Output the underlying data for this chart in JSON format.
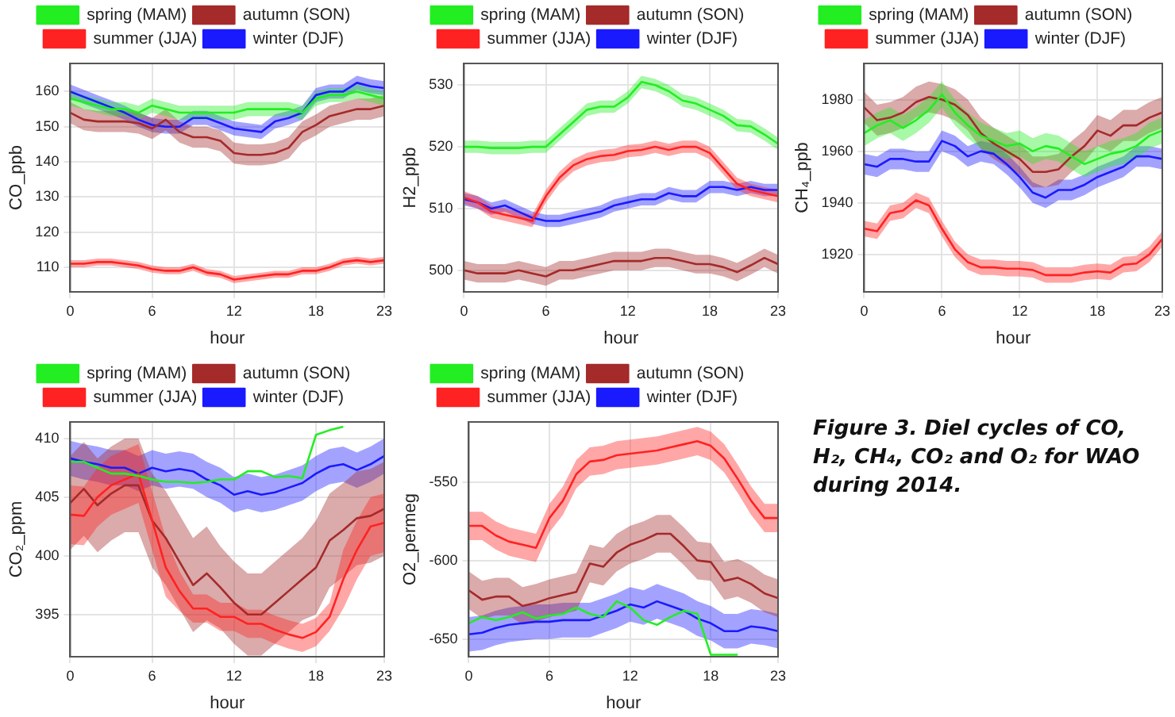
{
  "chart_data": [
    {
      "type": "line",
      "ylabel": "CO_ppb",
      "xlabel": "hour",
      "legend": "top",
      "grid": true,
      "marker": "none",
      "x": [
        0,
        1,
        2,
        3,
        4,
        5,
        6,
        7,
        8,
        9,
        10,
        11,
        12,
        13,
        14,
        15,
        16,
        17,
        18,
        19,
        20,
        21,
        22,
        23
      ],
      "xlim": [
        0,
        23
      ],
      "xticks": [
        0,
        6,
        12,
        18,
        23
      ],
      "ylim": [
        103,
        168
      ],
      "yticks": [
        110,
        120,
        130,
        140,
        150,
        160
      ],
      "series": [
        {
          "name": "spring (MAM)",
          "color": "#22ee22",
          "values": [
            158,
            157,
            156,
            155,
            155,
            154,
            156,
            155,
            154,
            154,
            154,
            154,
            154,
            155,
            155,
            155,
            155,
            154,
            158,
            159,
            159,
            160,
            159,
            158
          ],
          "lower": [
            156,
            155,
            154,
            153,
            153,
            152,
            154,
            153,
            152,
            152,
            152,
            152,
            152,
            153,
            153,
            153,
            153,
            152,
            156,
            157,
            157,
            158,
            157,
            156
          ],
          "upper": [
            160,
            159,
            158,
            157,
            157,
            156,
            158,
            157,
            156,
            156,
            156,
            156,
            156,
            157,
            157,
            157,
            157,
            156,
            160,
            161,
            161,
            162,
            161,
            160
          ]
        },
        {
          "name": "summer (JJA)",
          "color": "#ff2222",
          "values": [
            111,
            111,
            111.5,
            111.5,
            111,
            110.5,
            109.5,
            109,
            109,
            110,
            108.5,
            108,
            106.5,
            107,
            107.5,
            108,
            108,
            109,
            109,
            110,
            111.5,
            112,
            111.5,
            112
          ],
          "lower": [
            110,
            110,
            110.5,
            110.5,
            110,
            109.5,
            108.5,
            108,
            108,
            109,
            107.5,
            107,
            105.5,
            106,
            106.5,
            107,
            107,
            108,
            108,
            109,
            110.5,
            111,
            110.5,
            111
          ],
          "upper": [
            112,
            112,
            112.5,
            112.5,
            112,
            111.5,
            110.5,
            110,
            110,
            111,
            109.5,
            109,
            107.5,
            108,
            108.5,
            109,
            109,
            110,
            110,
            111,
            112.5,
            113,
            112.5,
            113
          ]
        },
        {
          "name": "autumn (SON)",
          "color": "#a52a2a",
          "values": [
            154,
            152,
            151.5,
            151.5,
            151.5,
            151,
            149.5,
            152,
            148.5,
            147,
            147,
            146,
            142.5,
            142,
            142,
            142.5,
            144,
            148.5,
            150.5,
            153,
            154,
            155,
            155,
            156
          ],
          "lower": [
            151,
            149,
            148.5,
            148.5,
            148.5,
            148,
            146.5,
            149,
            145.5,
            144,
            144,
            143,
            139.5,
            139,
            139,
            139.5,
            141,
            145.5,
            147.5,
            150,
            151,
            152,
            152,
            153
          ],
          "upper": [
            157,
            155,
            154.5,
            154.5,
            154.5,
            154,
            152.5,
            155,
            151.5,
            150,
            150,
            149,
            145.5,
            145,
            145,
            145.5,
            147,
            151.5,
            153.5,
            156,
            157,
            158,
            158,
            159
          ]
        },
        {
          "name": "winter (DJF)",
          "color": "#1a1aff",
          "values": [
            160,
            158.5,
            157,
            155.5,
            154,
            152,
            150.5,
            150,
            150,
            152.5,
            152.5,
            151,
            149.5,
            149,
            148.5,
            151.5,
            152.5,
            154,
            159,
            160,
            160,
            162.5,
            161.5,
            161
          ],
          "lower": [
            158,
            156.5,
            155,
            153.5,
            152,
            150,
            148.5,
            148,
            148,
            150.5,
            150.5,
            149,
            147.5,
            147,
            146.5,
            149.5,
            150.5,
            152,
            157,
            158,
            158,
            160.5,
            159.5,
            159
          ],
          "upper": [
            162,
            160.5,
            159,
            157.5,
            156,
            154,
            152.5,
            152,
            152,
            154.5,
            154.5,
            153,
            151.5,
            151,
            150.5,
            153.5,
            154.5,
            156,
            161,
            162,
            162,
            164.5,
            163.5,
            163
          ]
        }
      ]
    },
    {
      "type": "line",
      "ylabel": "H2_ppb",
      "xlabel": "hour",
      "legend": "top",
      "grid": true,
      "marker": "none",
      "x": [
        0,
        1,
        2,
        3,
        4,
        5,
        6,
        7,
        8,
        9,
        10,
        11,
        12,
        13,
        14,
        15,
        16,
        17,
        18,
        19,
        20,
        21,
        22,
        23
      ],
      "xlim": [
        0,
        23
      ],
      "xticks": [
        0,
        6,
        12,
        18,
        23
      ],
      "ylim": [
        496.5,
        533.5
      ],
      "yticks": [
        500,
        510,
        520,
        530
      ],
      "series": [
        {
          "name": "spring (MAM)",
          "color": "#22ee22",
          "values": [
            520,
            520,
            519.8,
            519.8,
            519.8,
            520,
            520,
            522,
            524,
            526,
            526.5,
            526.5,
            528,
            530.5,
            530,
            529,
            527.5,
            527,
            526,
            525,
            523.5,
            523.3,
            522,
            520.5
          ],
          "lower": [
            519,
            519,
            518.8,
            518.8,
            518.8,
            519,
            519,
            521,
            523,
            525,
            525.5,
            525.5,
            527,
            529.5,
            529,
            528,
            526.5,
            526,
            525,
            524,
            522.5,
            522.3,
            521,
            519.5
          ],
          "upper": [
            521,
            521,
            520.8,
            520.8,
            520.8,
            521,
            521,
            523,
            525,
            527,
            527.5,
            527.5,
            529,
            531.5,
            531,
            530,
            528.5,
            528,
            527,
            526,
            524.5,
            524.3,
            523,
            521.5
          ]
        },
        {
          "name": "summer (JJA)",
          "color": "#ff2222",
          "values": [
            511.8,
            511,
            509.5,
            509,
            508.5,
            508,
            512,
            515,
            517,
            518,
            518.5,
            518.7,
            519.3,
            519.5,
            520,
            519.5,
            520,
            520,
            519,
            516.5,
            514,
            513,
            512.5,
            512
          ],
          "lower": [
            510.8,
            510,
            508.5,
            508,
            507.5,
            507,
            511,
            514,
            516,
            517,
            517.5,
            517.7,
            518.3,
            518.5,
            519,
            518.5,
            519,
            519,
            518,
            515.5,
            513,
            512,
            511.5,
            511
          ],
          "upper": [
            512.8,
            512,
            510.5,
            510,
            509.5,
            509,
            513,
            516,
            518,
            519,
            519.5,
            519.7,
            520.3,
            520.5,
            521,
            520.5,
            521,
            521,
            520,
            517.5,
            515,
            514,
            513.5,
            513
          ]
        },
        {
          "name": "autumn (SON)",
          "color": "#a52a2a",
          "values": [
            500,
            499.5,
            499.5,
            499.5,
            500,
            499.5,
            499,
            500,
            500,
            500.5,
            501,
            501.5,
            501.5,
            501.5,
            502,
            502,
            501.5,
            501,
            501,
            500.5,
            499.7,
            500.8,
            502,
            501
          ],
          "lower": [
            498.5,
            498,
            498,
            498,
            498.5,
            498,
            497.5,
            498.5,
            498.5,
            499,
            499.5,
            500,
            500,
            500,
            500.5,
            500.5,
            500,
            499.5,
            499.5,
            499,
            498.2,
            499.3,
            500.5,
            499.5
          ],
          "upper": [
            501.5,
            501,
            501,
            501,
            501.5,
            501,
            500.5,
            501.5,
            501.5,
            502,
            502.5,
            503,
            503,
            503,
            503.5,
            503.5,
            503,
            502.5,
            502.5,
            502,
            501.2,
            502.3,
            503.5,
            502.5
          ]
        },
        {
          "name": "winter (DJF)",
          "color": "#1a1aff",
          "values": [
            511.5,
            511,
            510,
            510.5,
            509.5,
            508.5,
            508,
            508,
            508.5,
            509,
            509.5,
            510.5,
            511,
            511.5,
            511.5,
            512.5,
            512,
            512,
            513.5,
            513.5,
            513,
            513.5,
            513,
            513
          ],
          "lower": [
            510.5,
            510,
            509,
            509.5,
            508.5,
            507.5,
            507,
            507,
            507.5,
            508,
            508.5,
            509.5,
            510,
            510.5,
            510.5,
            511.5,
            511,
            511,
            512.5,
            512.5,
            512,
            512.5,
            512,
            512
          ],
          "upper": [
            512.5,
            512,
            511,
            511.5,
            510.5,
            509.5,
            509,
            509,
            509.5,
            510,
            510.5,
            511.5,
            512,
            512.5,
            512.5,
            513.5,
            513,
            513,
            514.5,
            514.5,
            514,
            514.5,
            514,
            514
          ]
        }
      ]
    },
    {
      "type": "line",
      "ylabel": "CH₄_ppb",
      "xlabel": "hour",
      "legend": "top",
      "grid": true,
      "marker": "none",
      "x": [
        0,
        1,
        2,
        3,
        4,
        5,
        6,
        7,
        8,
        9,
        10,
        11,
        12,
        13,
        14,
        15,
        16,
        17,
        18,
        19,
        20,
        21,
        22,
        23
      ],
      "xlim": [
        0,
        23
      ],
      "xticks": [
        0,
        6,
        12,
        18,
        23
      ],
      "ylim": [
        1905.5,
        1994
      ],
      "yticks": [
        1920,
        1940,
        1960,
        1980
      ],
      "series": [
        {
          "name": "spring (MAM)",
          "color": "#22ee22",
          "values": [
            1967,
            1970,
            1972,
            1969,
            1972,
            1976,
            1982,
            1975,
            1970,
            1966,
            1964,
            1962,
            1963,
            1960,
            1962,
            1961,
            1958,
            1955,
            1957,
            1959,
            1960,
            1962,
            1966,
            1968
          ],
          "lower": [
            1962,
            1965,
            1967,
            1964,
            1967,
            1971,
            1977,
            1970,
            1965,
            1961,
            1959,
            1957,
            1958,
            1955,
            1957,
            1956,
            1953,
            1950,
            1952,
            1954,
            1955,
            1957,
            1961,
            1963
          ],
          "upper": [
            1972,
            1975,
            1977,
            1974,
            1977,
            1981,
            1987,
            1980,
            1975,
            1971,
            1969,
            1967,
            1968,
            1965,
            1967,
            1966,
            1963,
            1960,
            1962,
            1964,
            1965,
            1967,
            1971,
            1973
          ]
        },
        {
          "name": "summer (JJA)",
          "color": "#ff2222",
          "values": [
            1930,
            1929,
            1936,
            1937,
            1941,
            1939,
            1930,
            1922,
            1917,
            1915,
            1915,
            1914.5,
            1914.5,
            1914,
            1912,
            1912,
            1912,
            1913,
            1913.5,
            1913,
            1916,
            1916.5,
            1920,
            1926
          ],
          "lower": [
            1927,
            1926,
            1933,
            1934,
            1938,
            1936,
            1927,
            1919,
            1914,
            1912,
            1912,
            1911.5,
            1911.5,
            1911,
            1909,
            1909,
            1909,
            1910,
            1910.5,
            1910,
            1913,
            1913.5,
            1917,
            1923
          ],
          "upper": [
            1933,
            1932,
            1939,
            1940,
            1944,
            1942,
            1933,
            1925,
            1920,
            1918,
            1918,
            1917.5,
            1917.5,
            1917,
            1915,
            1915,
            1915,
            1916,
            1916.5,
            1916,
            1919,
            1919.5,
            1923,
            1929
          ]
        },
        {
          "name": "autumn (SON)",
          "color": "#a52a2a",
          "values": [
            1977,
            1972,
            1973,
            1975,
            1979,
            1981,
            1980,
            1978,
            1974,
            1967,
            1963,
            1960,
            1957,
            1952,
            1952,
            1953,
            1958,
            1962,
            1968,
            1966,
            1970,
            1970,
            1973,
            1975
          ],
          "lower": [
            1971,
            1966,
            1967,
            1969,
            1973,
            1975,
            1974,
            1972,
            1968,
            1961,
            1957,
            1954,
            1951,
            1946,
            1946,
            1947,
            1952,
            1956,
            1962,
            1960,
            1964,
            1964,
            1967,
            1969
          ],
          "upper": [
            1983,
            1978,
            1979,
            1981,
            1985,
            1987,
            1986,
            1984,
            1980,
            1973,
            1969,
            1966,
            1963,
            1958,
            1958,
            1959,
            1964,
            1968,
            1974,
            1972,
            1976,
            1976,
            1979,
            1981
          ]
        },
        {
          "name": "winter (DJF)",
          "color": "#1a1aff",
          "values": [
            1955,
            1954,
            1957,
            1957,
            1956,
            1956,
            1964,
            1962,
            1958,
            1960,
            1959,
            1955,
            1950,
            1944,
            1942,
            1945,
            1945,
            1947,
            1950,
            1952,
            1954,
            1958,
            1958,
            1957
          ],
          "lower": [
            1951,
            1950,
            1953,
            1953,
            1952,
            1952,
            1960,
            1958,
            1954,
            1956,
            1955,
            1951,
            1946,
            1940,
            1938,
            1941,
            1941,
            1943,
            1946,
            1948,
            1950,
            1954,
            1954,
            1953
          ],
          "upper": [
            1959,
            1958,
            1961,
            1961,
            1960,
            1960,
            1968,
            1966,
            1962,
            1964,
            1963,
            1959,
            1954,
            1948,
            1946,
            1949,
            1949,
            1951,
            1954,
            1956,
            1958,
            1962,
            1962,
            1961
          ]
        }
      ]
    },
    {
      "type": "line",
      "ylabel": "CO₂_ppm",
      "xlabel": "hour",
      "legend": "top",
      "grid": true,
      "marker": "none",
      "x": [
        0,
        1,
        2,
        3,
        4,
        5,
        6,
        7,
        8,
        9,
        10,
        11,
        12,
        13,
        14,
        15,
        16,
        17,
        18,
        19,
        20,
        21,
        22,
        23
      ],
      "xlim": [
        0,
        23
      ],
      "xticks": [
        0,
        6,
        12,
        18,
        23
      ],
      "ylim": [
        391.4,
        411.4
      ],
      "yticks": [
        395,
        400,
        405,
        410
      ],
      "series": [
        {
          "name": "spring (MAM)",
          "color": "#22ee22",
          "values": [
            408,
            408,
            407.5,
            407,
            407,
            406.8,
            406.5,
            406.3,
            406.3,
            406.2,
            406.3,
            406.5,
            406.5,
            407.2,
            407.2,
            406.7,
            406.8,
            406.6,
            410.3,
            410.7,
            411,
            null,
            null,
            null
          ]
        },
        {
          "name": "summer (JJA)",
          "color": "#ff2222",
          "values": [
            403.5,
            403.4,
            405,
            406,
            406.5,
            407,
            403,
            399,
            397,
            395.5,
            395.5,
            394.8,
            394.8,
            394.2,
            394.2,
            393.7,
            393.3,
            393,
            393.5,
            394.8,
            398,
            400.5,
            402.5,
            402.8
          ],
          "lower": [
            401,
            400.9,
            402.5,
            403.5,
            404,
            404.5,
            400.5,
            396.5,
            395.3,
            394.3,
            394.3,
            393.6,
            393.6,
            393,
            393,
            392.5,
            392.1,
            391.8,
            392.3,
            393.6,
            395.5,
            398,
            400,
            400.3
          ],
          "upper": [
            406,
            405.9,
            407.5,
            408.5,
            409,
            409.5,
            405.5,
            401.5,
            398.7,
            396.7,
            396.7,
            396,
            396,
            395.4,
            395.4,
            394.9,
            394.5,
            394.2,
            394.7,
            396,
            400.5,
            403,
            405,
            405.3
          ]
        },
        {
          "name": "autumn (SON)",
          "color": "#a52a2a",
          "values": [
            404.5,
            405.7,
            404.3,
            405.3,
            406,
            406,
            403,
            401.5,
            399.5,
            397.5,
            398.5,
            397.3,
            396,
            395,
            395,
            396,
            397,
            398,
            399,
            401.3,
            402.2,
            403.2,
            403.4,
            404
          ],
          "lower": [
            400.5,
            401.7,
            400.3,
            401.3,
            402,
            402,
            399,
            397.5,
            395.5,
            393.5,
            394.5,
            393.8,
            392.5,
            391.5,
            391.5,
            392.5,
            393.5,
            394.5,
            395,
            397.3,
            398.2,
            399.2,
            399.4,
            400
          ],
          "upper": [
            408.5,
            409.7,
            408.3,
            409.3,
            410,
            410,
            407,
            405.5,
            403.5,
            401.5,
            402.5,
            400.8,
            399.5,
            398.5,
            398.5,
            399.5,
            400.5,
            401.5,
            403,
            405.3,
            406.2,
            407.2,
            407.4,
            408
          ]
        },
        {
          "name": "winter (DJF)",
          "color": "#1a1aff",
          "values": [
            408.3,
            408,
            407.8,
            407.5,
            407.5,
            407,
            407.5,
            407.2,
            407.4,
            407.2,
            406.5,
            406,
            405.2,
            405.5,
            405.2,
            405.4,
            405.8,
            406.2,
            407,
            407.6,
            407.8,
            407.3,
            407.8,
            408.5
          ],
          "lower": [
            406.8,
            406.5,
            406.3,
            406,
            406,
            405.5,
            406,
            405.7,
            405.9,
            405.7,
            405,
            404.5,
            403.7,
            404,
            403.7,
            403.9,
            404.3,
            404.7,
            405.5,
            406.1,
            406.3,
            405.8,
            406.3,
            407
          ],
          "upper": [
            409.8,
            409.5,
            409.3,
            409,
            409,
            408.5,
            409,
            408.7,
            408.9,
            408.7,
            408,
            407.5,
            406.7,
            407,
            406.7,
            406.9,
            407.3,
            407.7,
            408.5,
            409.1,
            409.3,
            408.8,
            409.3,
            410
          ]
        }
      ]
    },
    {
      "type": "line",
      "ylabel": "O2_permeg",
      "xlabel": "hour",
      "legend": "top",
      "grid": true,
      "marker": "none",
      "x": [
        0,
        1,
        2,
        3,
        4,
        5,
        6,
        7,
        8,
        9,
        10,
        11,
        12,
        13,
        14,
        15,
        16,
        17,
        18,
        19,
        20,
        21,
        22,
        23
      ],
      "xlim": [
        0,
        23
      ],
      "xticks": [
        0,
        6,
        12,
        18,
        23
      ],
      "ylim": [
        -661.3,
        -511.8
      ],
      "yticks": [
        -650,
        -600,
        -550
      ],
      "series": [
        {
          "name": "spring (MAM)",
          "color": "#22ee22",
          "values": [
            -640,
            -636,
            -638,
            -636,
            -633,
            -637,
            -635,
            -634,
            -630,
            -634,
            -636,
            -626,
            -630,
            -638,
            -641,
            -636,
            -632,
            -634,
            -660,
            -660,
            -660,
            null,
            null,
            null
          ]
        },
        {
          "name": "summer (JJA)",
          "color": "#ff2222",
          "values": [
            -578,
            -578,
            -584,
            -588,
            -590,
            -592,
            -573,
            -562,
            -545,
            -537,
            -536,
            -533,
            -532,
            -531,
            -530,
            -528,
            -526,
            -524,
            -527,
            -535,
            -548,
            -562,
            -573,
            -573
          ],
          "lower": [
            -587,
            -587,
            -593,
            -597,
            -599,
            -601,
            -582,
            -571,
            -554,
            -546,
            -545,
            -542,
            -541,
            -540,
            -539,
            -537,
            -535,
            -533,
            -536,
            -544,
            -557,
            -571,
            -582,
            -582
          ],
          "upper": [
            -569,
            -569,
            -575,
            -579,
            -581,
            -583,
            -564,
            -553,
            -536,
            -528,
            -527,
            -524,
            -523,
            -522,
            -521,
            -519,
            -517,
            -515,
            -518,
            -526,
            -539,
            -553,
            -564,
            -564
          ]
        },
        {
          "name": "autumn (SON)",
          "color": "#a52a2a",
          "values": [
            -619,
            -625,
            -623,
            -623,
            -629,
            -627,
            -624,
            -622,
            -620,
            -602,
            -604,
            -595,
            -590,
            -587,
            -583,
            -583,
            -591,
            -600,
            -601,
            -613,
            -611,
            -615,
            -621,
            -624
          ],
          "lower": [
            -631,
            -637,
            -635,
            -635,
            -641,
            -639,
            -636,
            -634,
            -632,
            -614,
            -616,
            -607,
            -602,
            -599,
            -595,
            -595,
            -603,
            -612,
            -613,
            -625,
            -623,
            -627,
            -633,
            -636
          ],
          "upper": [
            -607,
            -613,
            -611,
            -611,
            -617,
            -615,
            -612,
            -610,
            -608,
            -590,
            -592,
            -583,
            -578,
            -575,
            -571,
            -571,
            -579,
            -588,
            -589,
            -601,
            -599,
            -603,
            -609,
            -612
          ]
        },
        {
          "name": "winter (DJF)",
          "color": "#1a1aff",
          "values": [
            -647,
            -646,
            -643,
            -641,
            -640,
            -639,
            -639,
            -638,
            -638,
            -638,
            -635,
            -632,
            -628,
            -630,
            -626,
            -629,
            -632,
            -637,
            -640,
            -645,
            -645,
            -642,
            -643,
            -645
          ],
          "lower": [
            -658,
            -657,
            -654,
            -652,
            -651,
            -650,
            -650,
            -649,
            -649,
            -649,
            -646,
            -643,
            -639,
            -641,
            -637,
            -640,
            -643,
            -648,
            -651,
            -656,
            -656,
            -653,
            -654,
            -656
          ],
          "upper": [
            -636,
            -635,
            -632,
            -630,
            -629,
            -628,
            -628,
            -627,
            -627,
            -627,
            -624,
            -621,
            -617,
            -619,
            -615,
            -618,
            -621,
            -626,
            -629,
            -634,
            -634,
            -631,
            -632,
            -634
          ]
        }
      ]
    },
    {
      "type": "other",
      "title": "Figure 3. Diel cycles of CO, H₂, CH₄, CO₂ and O₂ for WAO during 2014."
    }
  ]
}
